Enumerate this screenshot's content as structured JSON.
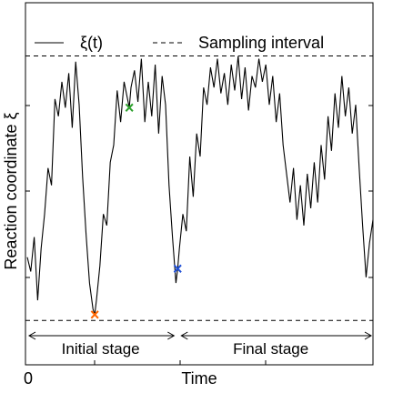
{
  "chart_data": {
    "type": "line",
    "xlabel": "Time",
    "ylabel": "Reaction coordinate ξ",
    "x_ticks": [
      {
        "x": 0,
        "label": "0"
      }
    ],
    "xlim": [
      0,
      1
    ],
    "ylim": [
      0,
      1
    ],
    "legend": {
      "placement": "top",
      "entries": [
        {
          "label": "ξ(t)",
          "style": "solid"
        },
        {
          "label": "Sampling interval",
          "style": "dashed"
        }
      ]
    },
    "sampling_interval": {
      "lower": 0.05,
      "upper": 0.97
    },
    "stages": [
      {
        "label": "Initial stage",
        "x_start": 0.0,
        "x_end": 0.435
      },
      {
        "label": "Final stage",
        "x_start": 0.435,
        "x_end": 1.0
      }
    ],
    "markers": [
      {
        "symbol": "×",
        "color": "#2ca02c",
        "x": 0.295,
        "y": 0.79
      },
      {
        "symbol": "×",
        "color": "#ff6600",
        "x": 0.195,
        "y": 0.07
      },
      {
        "symbol": "×",
        "color": "#1f4fd6",
        "x": 0.435,
        "y": 0.23
      }
    ],
    "series": [
      {
        "style": "solid",
        "points": [
          [
            0.0,
            0.27
          ],
          [
            0.01,
            0.22
          ],
          [
            0.02,
            0.34
          ],
          [
            0.03,
            0.12
          ],
          [
            0.04,
            0.3
          ],
          [
            0.05,
            0.42
          ],
          [
            0.06,
            0.58
          ],
          [
            0.07,
            0.52
          ],
          [
            0.08,
            0.82
          ],
          [
            0.09,
            0.76
          ],
          [
            0.1,
            0.88
          ],
          [
            0.11,
            0.79
          ],
          [
            0.12,
            0.91
          ],
          [
            0.13,
            0.72
          ],
          [
            0.14,
            0.95
          ],
          [
            0.15,
            0.8
          ],
          [
            0.16,
            0.55
          ],
          [
            0.17,
            0.35
          ],
          [
            0.18,
            0.18
          ],
          [
            0.19,
            0.09
          ],
          [
            0.195,
            0.07
          ],
          [
            0.2,
            0.12
          ],
          [
            0.21,
            0.24
          ],
          [
            0.22,
            0.42
          ],
          [
            0.23,
            0.38
          ],
          [
            0.24,
            0.6
          ],
          [
            0.25,
            0.66
          ],
          [
            0.26,
            0.85
          ],
          [
            0.27,
            0.74
          ],
          [
            0.28,
            0.88
          ],
          [
            0.29,
            0.82
          ],
          [
            0.295,
            0.79
          ],
          [
            0.3,
            0.86
          ],
          [
            0.31,
            0.92
          ],
          [
            0.32,
            0.81
          ],
          [
            0.33,
            0.96
          ],
          [
            0.34,
            0.74
          ],
          [
            0.35,
            0.88
          ],
          [
            0.36,
            0.76
          ],
          [
            0.37,
            0.94
          ],
          [
            0.38,
            0.7
          ],
          [
            0.39,
            0.9
          ],
          [
            0.4,
            0.8
          ],
          [
            0.41,
            0.52
          ],
          [
            0.42,
            0.34
          ],
          [
            0.43,
            0.18
          ],
          [
            0.435,
            0.23
          ],
          [
            0.44,
            0.3
          ],
          [
            0.45,
            0.42
          ],
          [
            0.46,
            0.36
          ],
          [
            0.47,
            0.62
          ],
          [
            0.48,
            0.48
          ],
          [
            0.49,
            0.7
          ],
          [
            0.5,
            0.62
          ],
          [
            0.51,
            0.86
          ],
          [
            0.52,
            0.8
          ],
          [
            0.53,
            0.93
          ],
          [
            0.54,
            0.86
          ],
          [
            0.55,
            0.96
          ],
          [
            0.56,
            0.84
          ],
          [
            0.57,
            0.91
          ],
          [
            0.58,
            0.8
          ],
          [
            0.59,
            0.94
          ],
          [
            0.6,
            0.85
          ],
          [
            0.61,
            0.97
          ],
          [
            0.62,
            0.82
          ],
          [
            0.63,
            0.93
          ],
          [
            0.64,
            0.78
          ],
          [
            0.65,
            0.9
          ],
          [
            0.66,
            0.86
          ],
          [
            0.67,
            0.96
          ],
          [
            0.68,
            0.88
          ],
          [
            0.69,
            0.94
          ],
          [
            0.7,
            0.8
          ],
          [
            0.71,
            0.9
          ],
          [
            0.72,
            0.74
          ],
          [
            0.73,
            0.84
          ],
          [
            0.74,
            0.66
          ],
          [
            0.75,
            0.56
          ],
          [
            0.76,
            0.46
          ],
          [
            0.77,
            0.58
          ],
          [
            0.78,
            0.4
          ],
          [
            0.79,
            0.52
          ],
          [
            0.8,
            0.38
          ],
          [
            0.81,
            0.56
          ],
          [
            0.82,
            0.44
          ],
          [
            0.83,
            0.6
          ],
          [
            0.84,
            0.46
          ],
          [
            0.85,
            0.66
          ],
          [
            0.86,
            0.54
          ],
          [
            0.87,
            0.76
          ],
          [
            0.88,
            0.64
          ],
          [
            0.89,
            0.84
          ],
          [
            0.9,
            0.72
          ],
          [
            0.91,
            0.9
          ],
          [
            0.92,
            0.76
          ],
          [
            0.93,
            0.86
          ],
          [
            0.94,
            0.7
          ],
          [
            0.95,
            0.8
          ],
          [
            0.96,
            0.58
          ],
          [
            0.97,
            0.38
          ],
          [
            0.98,
            0.2
          ],
          [
            0.99,
            0.32
          ],
          [
            1.0,
            0.4
          ]
        ]
      }
    ]
  }
}
